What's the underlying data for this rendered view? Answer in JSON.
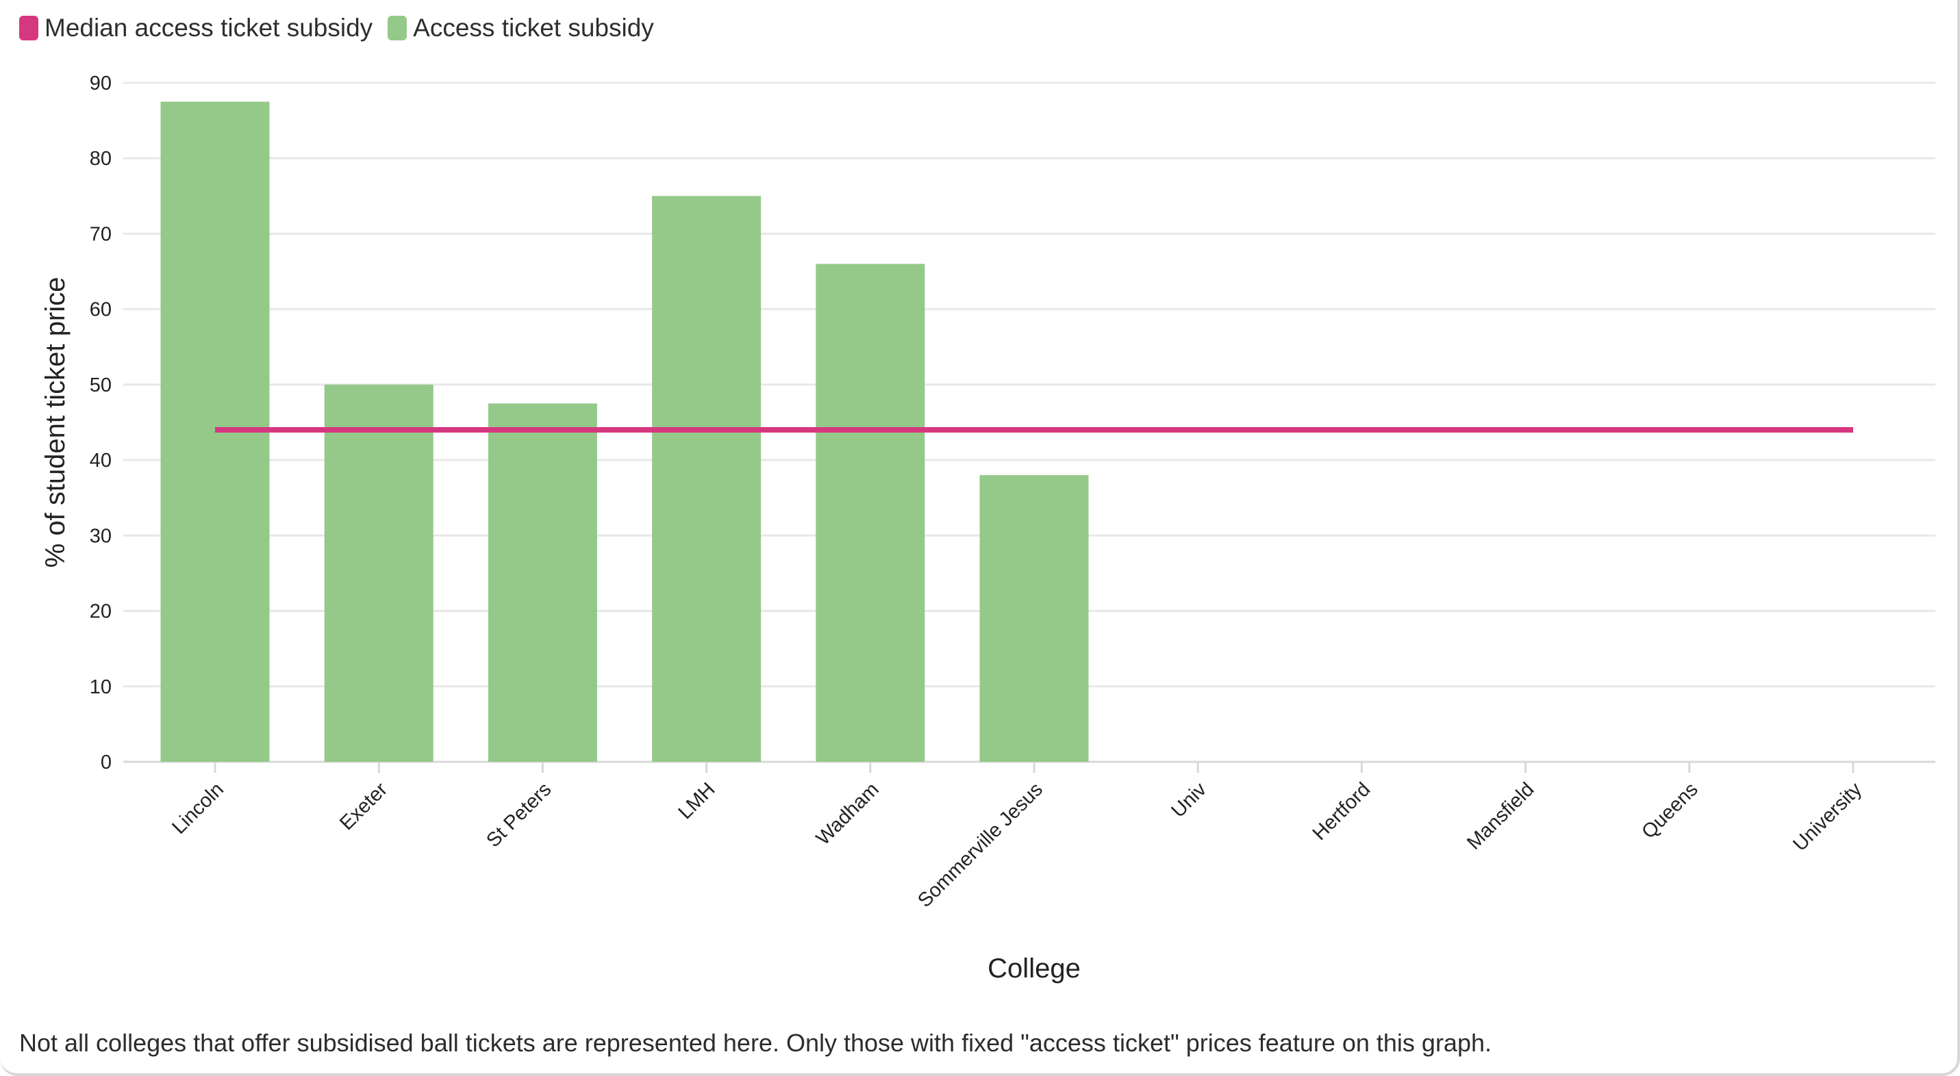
{
  "legend": {
    "median_label": "Median access ticket subsidy",
    "subsidy_label": "Access ticket subsidy"
  },
  "footnote": "Not all colleges that offer subsidised ball tickets are represented here. Only those with fixed \"access ticket\" prices feature on this graph.",
  "colors": {
    "median": "#d6387f",
    "bar": "#94c98a",
    "grid": "#e8e8e8",
    "axis": "#d8d8d8"
  },
  "chart_data": {
    "type": "bar",
    "xlabel": "College",
    "ylabel": "% of student ticket price",
    "categories": [
      "Lincoln",
      "Exeter",
      "St Peters",
      "LMH",
      "Wadham",
      "Sommerville Jesus",
      "Univ",
      "Hertford",
      "Mansfield",
      "Queens",
      "University"
    ],
    "series": [
      {
        "name": "Access ticket subsidy",
        "type": "bar",
        "values": [
          87.5,
          50,
          47.5,
          75,
          66,
          38,
          null,
          null,
          null,
          null,
          null
        ]
      },
      {
        "name": "Median access ticket subsidy",
        "type": "line",
        "values": [
          44,
          44,
          44,
          44,
          44,
          44,
          44,
          44,
          44,
          44,
          44
        ]
      }
    ],
    "ylim": [
      0,
      90
    ],
    "yticks": [
      0,
      10,
      20,
      30,
      40,
      50,
      60,
      70,
      80,
      90
    ],
    "grid": true,
    "legend": "top-left"
  }
}
